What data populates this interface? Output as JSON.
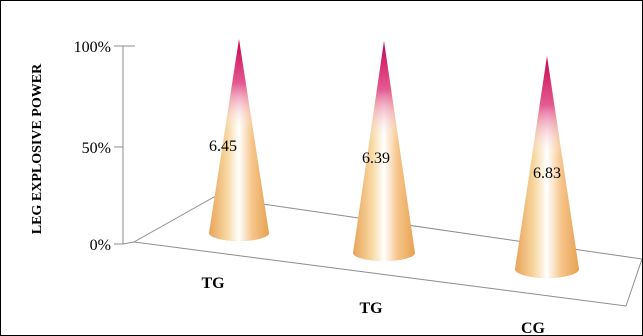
{
  "chart_data": {
    "type": "bar",
    "shape": "cone-3d",
    "ylabel": "LEG EXPLOSIVE POWER",
    "yticks": [
      "0%",
      "50%",
      "100%"
    ],
    "ylim": [
      0,
      100
    ],
    "categories": [
      "TG",
      "TG",
      "CG"
    ],
    "values": [
      100,
      100,
      100
    ],
    "data_labels": [
      "6.45",
      "6.39",
      "6.83"
    ],
    "colors": {
      "cone_body": "#f5c98a",
      "cone_highlight": "#ffffff",
      "cone_tip": "#d10f5a",
      "cone_base": "#e59a4c",
      "floor_line": "#8c8c8c"
    }
  }
}
